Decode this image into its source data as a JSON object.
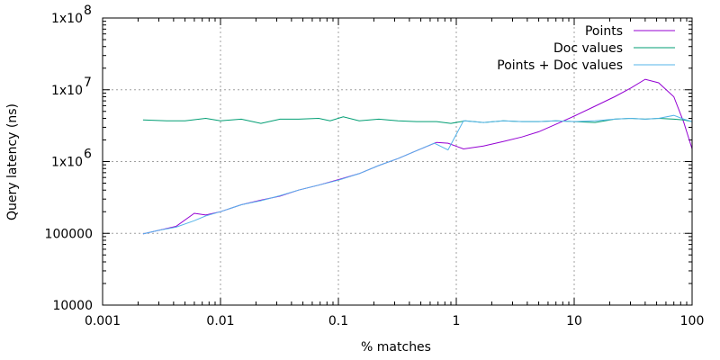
{
  "chart_data": {
    "type": "line",
    "xlabel": "% matches",
    "ylabel": "Query latency (ns)",
    "x_scale": "log",
    "y_scale": "log",
    "xlim": [
      0.001,
      100
    ],
    "ylim": [
      10000,
      100000000
    ],
    "grid": true,
    "legend_position": "top-right",
    "x_ticks": [
      {
        "value": 0.001,
        "label": "0.001"
      },
      {
        "value": 0.01,
        "label": "0.01"
      },
      {
        "value": 0.1,
        "label": "0.1"
      },
      {
        "value": 1,
        "label": "1"
      },
      {
        "value": 10,
        "label": "10"
      },
      {
        "value": 100,
        "label": "100"
      }
    ],
    "y_ticks": [
      {
        "value": 10000,
        "mantissa": "10000",
        "exp": ""
      },
      {
        "value": 100000,
        "mantissa": "100000",
        "exp": ""
      },
      {
        "value": 1000000,
        "mantissa": "1x10",
        "exp": "6"
      },
      {
        "value": 10000000,
        "mantissa": "1x10",
        "exp": "7"
      },
      {
        "value": 100000000,
        "mantissa": "1x10",
        "exp": "8"
      }
    ],
    "series": [
      {
        "name": "Points",
        "color": "#9400d3",
        "points": [
          [
            0.0022,
            98000
          ],
          [
            0.003,
            110000
          ],
          [
            0.0042,
            125000
          ],
          [
            0.006,
            190000
          ],
          [
            0.0075,
            180000
          ],
          [
            0.01,
            200000
          ],
          [
            0.015,
            250000
          ],
          [
            0.022,
            290000
          ],
          [
            0.032,
            330000
          ],
          [
            0.046,
            400000
          ],
          [
            0.068,
            470000
          ],
          [
            0.1,
            560000
          ],
          [
            0.15,
            680000
          ],
          [
            0.22,
            880000
          ],
          [
            0.32,
            1100000
          ],
          [
            0.46,
            1420000
          ],
          [
            0.68,
            1850000
          ],
          [
            0.85,
            1800000
          ],
          [
            1.15,
            1500000
          ],
          [
            1.7,
            1650000
          ],
          [
            2.5,
            1900000
          ],
          [
            3.6,
            2200000
          ],
          [
            5,
            2600000
          ],
          [
            7,
            3300000
          ],
          [
            10,
            4300000
          ],
          [
            15,
            5900000
          ],
          [
            22,
            8000000
          ],
          [
            30,
            10500000
          ],
          [
            40,
            14000000
          ],
          [
            52,
            12500000
          ],
          [
            70,
            8000000
          ],
          [
            85,
            3500000
          ],
          [
            100,
            1500000
          ]
        ]
      },
      {
        "name": "Doc values",
        "color": "#009e73",
        "points": [
          [
            0.0022,
            3800000
          ],
          [
            0.0035,
            3700000
          ],
          [
            0.005,
            3700000
          ],
          [
            0.0075,
            4000000
          ],
          [
            0.01,
            3700000
          ],
          [
            0.015,
            3900000
          ],
          [
            0.022,
            3400000
          ],
          [
            0.032,
            3900000
          ],
          [
            0.046,
            3900000
          ],
          [
            0.068,
            4000000
          ],
          [
            0.085,
            3700000
          ],
          [
            0.11,
            4200000
          ],
          [
            0.15,
            3700000
          ],
          [
            0.22,
            3900000
          ],
          [
            0.32,
            3700000
          ],
          [
            0.46,
            3600000
          ],
          [
            0.68,
            3600000
          ],
          [
            0.9,
            3400000
          ],
          [
            1.2,
            3700000
          ],
          [
            1.7,
            3500000
          ],
          [
            2.5,
            3700000
          ],
          [
            3.6,
            3600000
          ],
          [
            5,
            3600000
          ],
          [
            7,
            3700000
          ],
          [
            10,
            3600000
          ],
          [
            15,
            3500000
          ],
          [
            22,
            3900000
          ],
          [
            30,
            4000000
          ],
          [
            40,
            3900000
          ],
          [
            52,
            4000000
          ],
          [
            70,
            3900000
          ],
          [
            85,
            3800000
          ],
          [
            100,
            3600000
          ]
        ]
      },
      {
        "name": "Points + Doc values",
        "color": "#56b4e9",
        "points": [
          [
            0.0022,
            98000
          ],
          [
            0.003,
            110000
          ],
          [
            0.0042,
            122000
          ],
          [
            0.006,
            150000
          ],
          [
            0.0075,
            175000
          ],
          [
            0.01,
            200000
          ],
          [
            0.015,
            250000
          ],
          [
            0.022,
            285000
          ],
          [
            0.032,
            335000
          ],
          [
            0.046,
            400000
          ],
          [
            0.068,
            470000
          ],
          [
            0.1,
            550000
          ],
          [
            0.15,
            680000
          ],
          [
            0.22,
            880000
          ],
          [
            0.32,
            1100000
          ],
          [
            0.46,
            1420000
          ],
          [
            0.65,
            1800000
          ],
          [
            0.85,
            1450000
          ],
          [
            1.15,
            3700000
          ],
          [
            1.7,
            3500000
          ],
          [
            2.5,
            3700000
          ],
          [
            3.6,
            3600000
          ],
          [
            5,
            3600000
          ],
          [
            7,
            3700000
          ],
          [
            10,
            3600000
          ],
          [
            15,
            3700000
          ],
          [
            22,
            3900000
          ],
          [
            30,
            4000000
          ],
          [
            40,
            3900000
          ],
          [
            52,
            4000000
          ],
          [
            70,
            4400000
          ],
          [
            85,
            3900000
          ],
          [
            100,
            3600000
          ]
        ]
      }
    ]
  }
}
